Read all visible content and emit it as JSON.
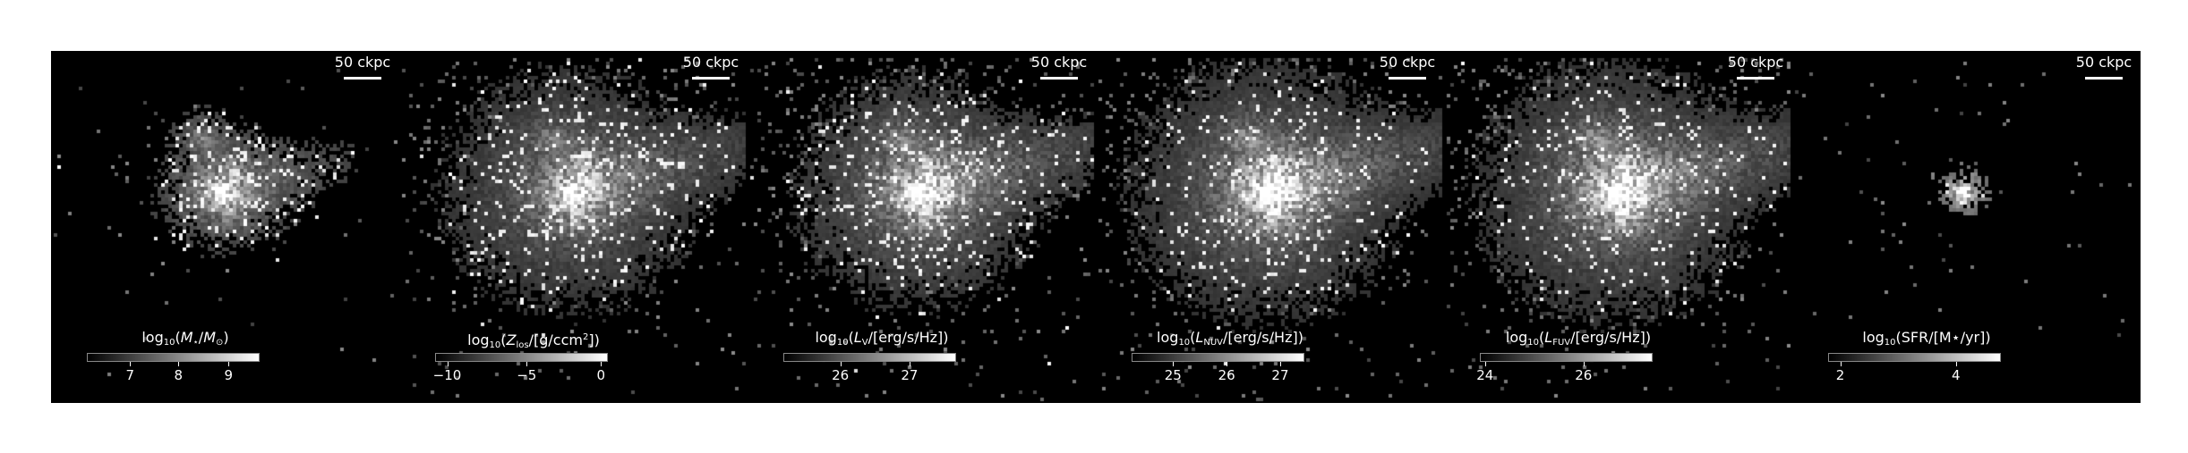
{
  "scalebar_label": "50 ckpc",
  "panels": [
    {
      "id": "stellar-mass",
      "colorbar_title": "log10(M⋆/M⊙)",
      "ticks": [
        {
          "label": "7",
          "frac": 0.25
        },
        {
          "label": "8",
          "frac": 0.53
        },
        {
          "label": "9",
          "frac": 0.82
        }
      ]
    },
    {
      "id": "metallicity",
      "colorbar_title": "log10(Zlos/[g/ccm2])",
      "ticks": [
        {
          "label": "−10",
          "frac": 0.07
        },
        {
          "label": "−5",
          "frac": 0.53
        },
        {
          "label": "0",
          "frac": 0.96
        }
      ]
    },
    {
      "id": "v-band-luminosity",
      "colorbar_title": "log10(LV/[erg/s/Hz])",
      "ticks": [
        {
          "label": "26",
          "frac": 0.33
        },
        {
          "label": "27",
          "frac": 0.73
        }
      ]
    },
    {
      "id": "nuv-luminosity",
      "colorbar_title": "log10(LNUV/[erg/s/Hz])",
      "ticks": [
        {
          "label": "25",
          "frac": 0.24
        },
        {
          "label": "26",
          "frac": 0.55
        },
        {
          "label": "27",
          "frac": 0.86
        }
      ]
    },
    {
      "id": "fuv-luminosity",
      "colorbar_title": "log10(LFUV/[erg/s/Hz])",
      "ticks": [
        {
          "label": "24",
          "frac": 0.03
        },
        {
          "label": "26",
          "frac": 0.6
        }
      ]
    },
    {
      "id": "star-formation-rate",
      "colorbar_title": "log10(SFR/[M⋆/yr])",
      "ticks": [
        {
          "label": "2",
          "frac": 0.07
        },
        {
          "label": "4",
          "frac": 0.74
        }
      ]
    }
  ]
}
